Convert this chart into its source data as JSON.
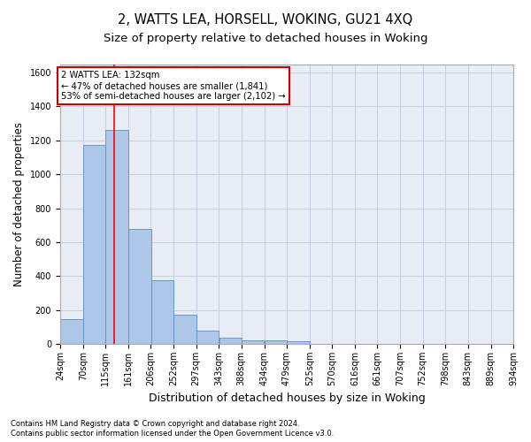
{
  "title": "2, WATTS LEA, HORSELL, WOKING, GU21 4XQ",
  "subtitle": "Size of property relative to detached houses in Woking",
  "xlabel": "Distribution of detached houses by size in Woking",
  "ylabel": "Number of detached properties",
  "footnote1": "Contains HM Land Registry data © Crown copyright and database right 2024.",
  "footnote2": "Contains public sector information licensed under the Open Government Licence v3.0.",
  "annotation_line1": "2 WATTS LEA: 132sqm",
  "annotation_line2": "← 47% of detached houses are smaller (1,841)",
  "annotation_line3": "53% of semi-detached houses are larger (2,102) →",
  "bar_edges": [
    24,
    70,
    115,
    161,
    206,
    252,
    297,
    343,
    388,
    434,
    479,
    525,
    570,
    616,
    661,
    707,
    752,
    798,
    843,
    889,
    934
  ],
  "bar_heights": [
    145,
    1175,
    1260,
    680,
    375,
    170,
    80,
    35,
    20,
    20,
    15,
    0,
    0,
    0,
    0,
    0,
    0,
    0,
    0,
    0
  ],
  "bar_color": "#aec6e8",
  "bar_edge_color": "#5a8fc4",
  "red_line_x": 132,
  "ylim": [
    0,
    1650
  ],
  "yticks": [
    0,
    200,
    400,
    600,
    800,
    1000,
    1200,
    1400,
    1600
  ],
  "grid_color": "#c8cfe0",
  "bg_color": "#e8ecf4",
  "title_fontsize": 10.5,
  "subtitle_fontsize": 9.5,
  "annotation_box_color": "#cc0000",
  "tick_fontsize": 7.0,
  "ylabel_fontsize": 8.5,
  "xlabel_fontsize": 9.0
}
